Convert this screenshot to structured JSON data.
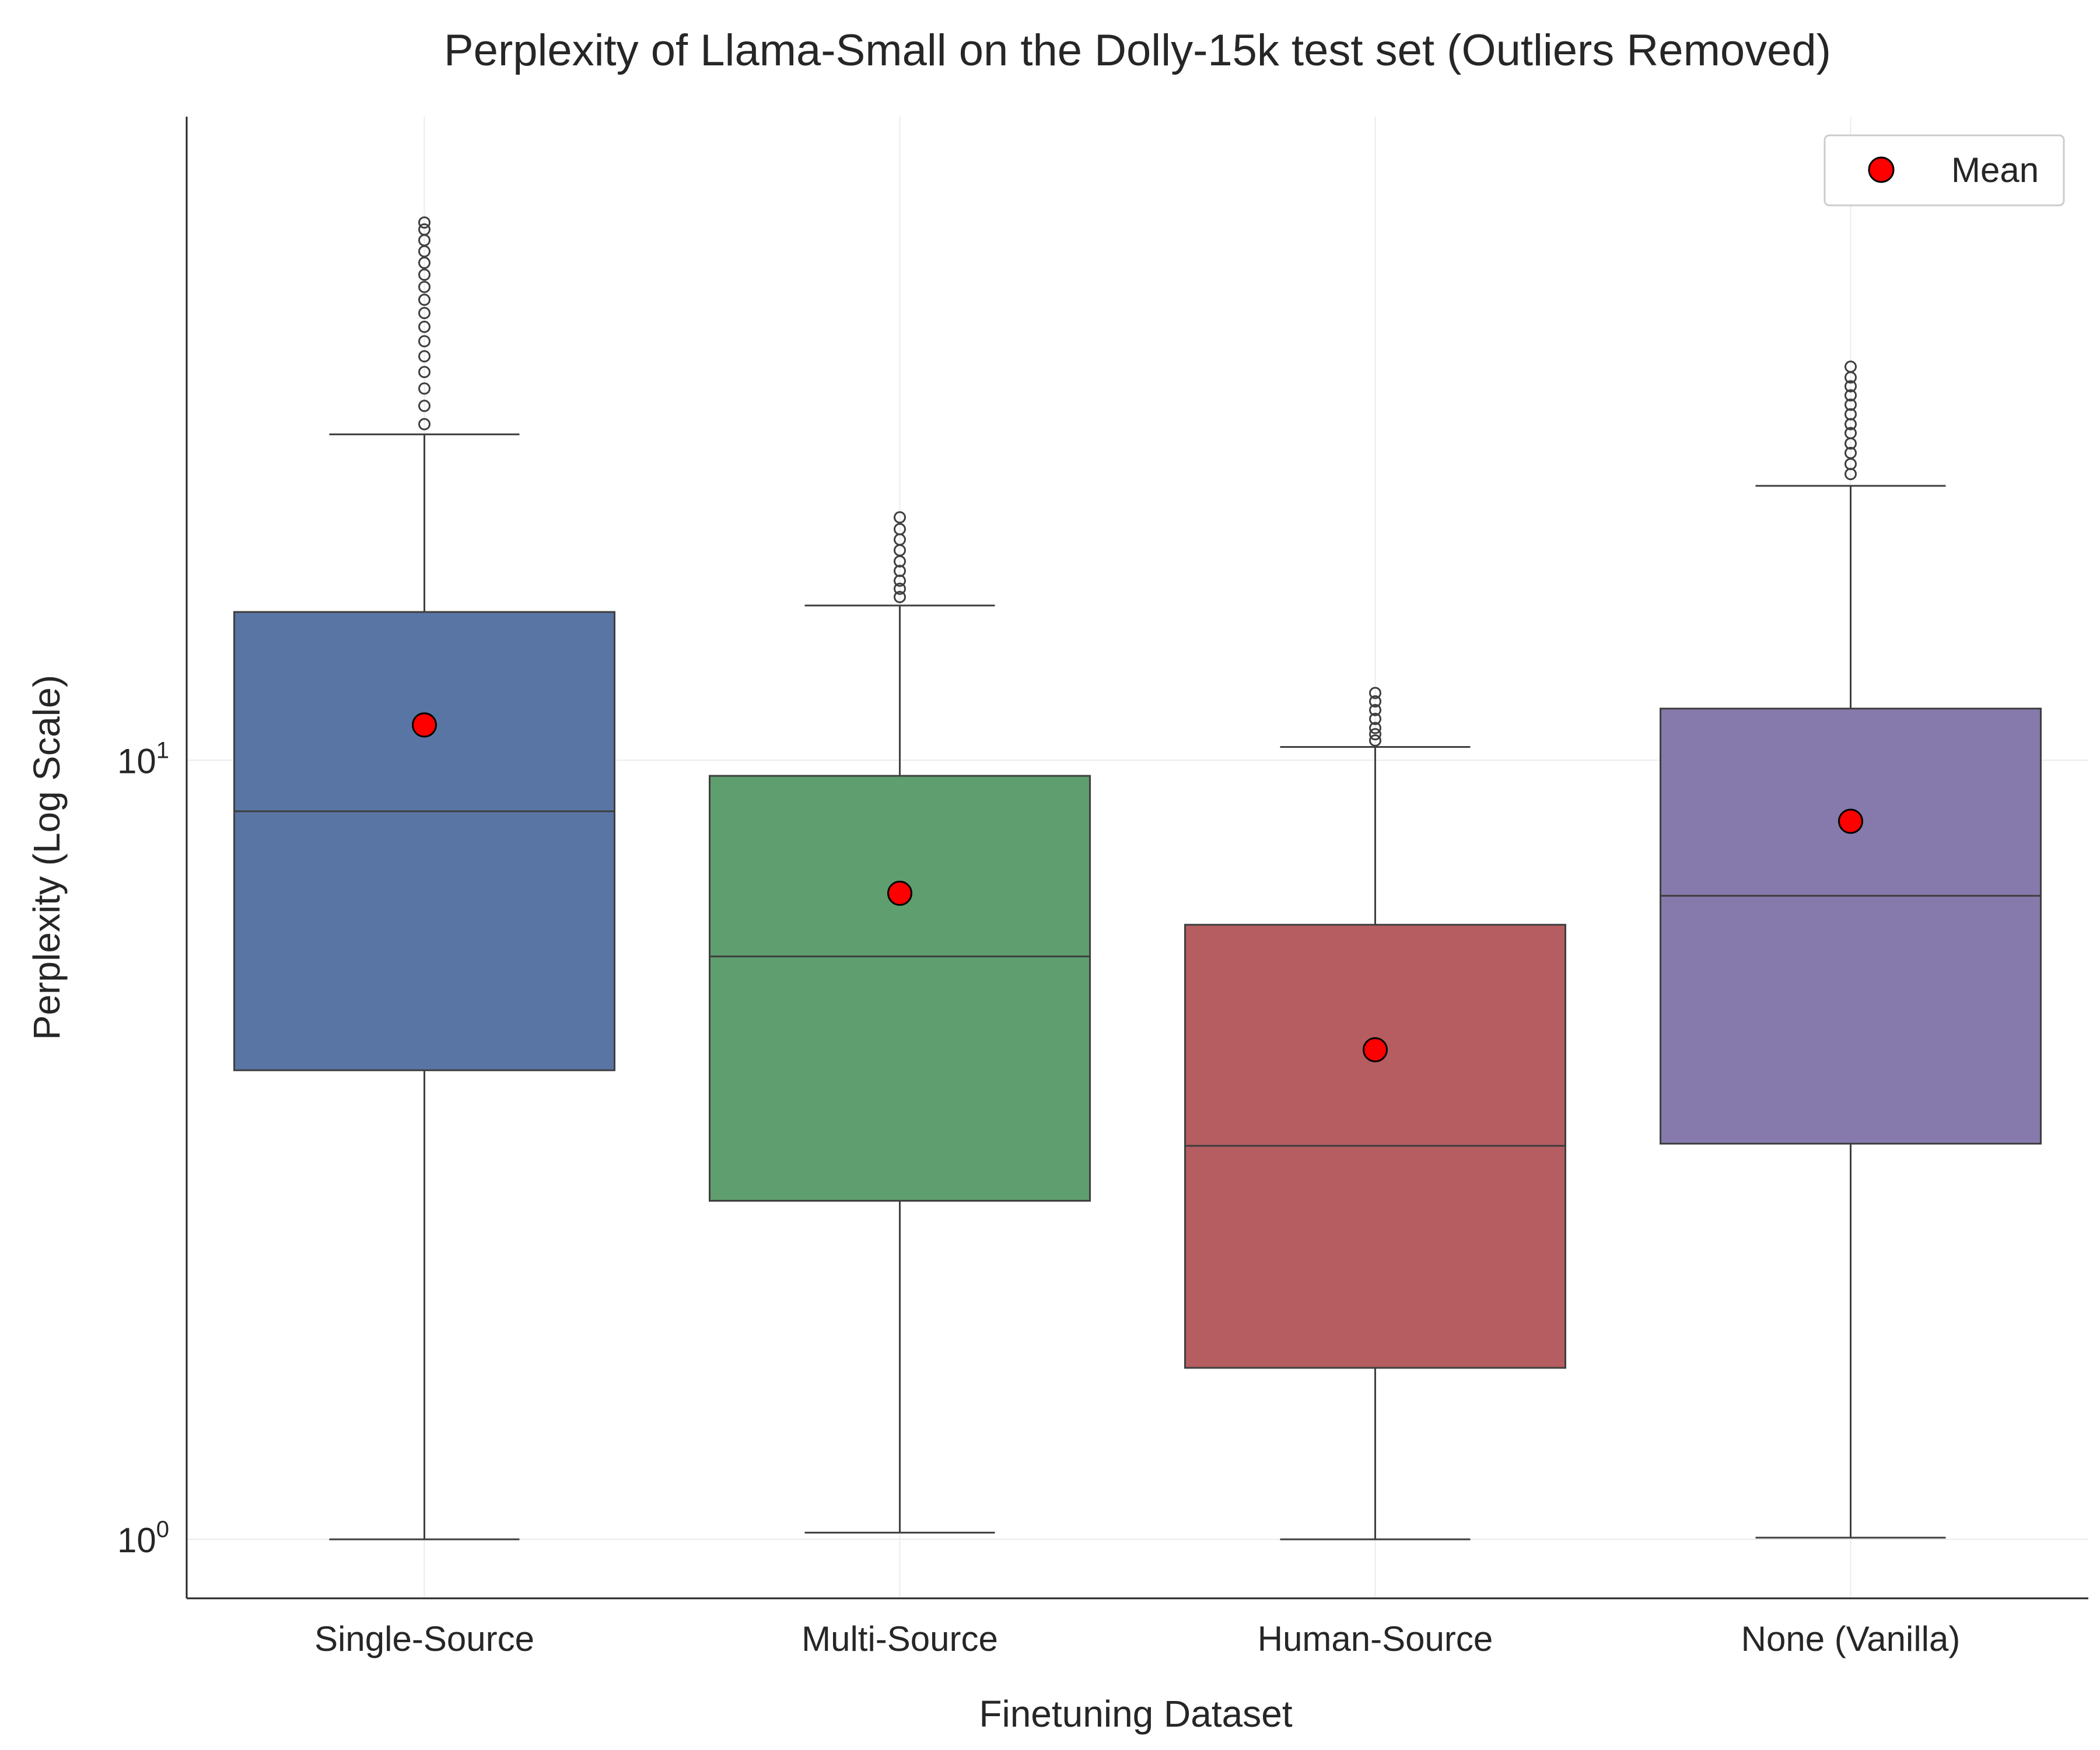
{
  "chart_data": {
    "type": "box",
    "title": "Perplexity of Llama-Small on the Dolly-15k test set (Outliers Removed)",
    "xlabel": "Finetuning Dataset",
    "ylabel": "Perplexity (Log Scale)",
    "yscale": "log",
    "ylim": [
      0.84,
      67
    ],
    "yticks": [
      {
        "value": 1,
        "base": "10",
        "exp": "0"
      },
      {
        "value": 10,
        "base": "10",
        "exp": "1"
      }
    ],
    "grid": true,
    "legend": {
      "position": "top-right",
      "entries": [
        {
          "label": "Mean",
          "marker": "circle",
          "color": "#ff0000"
        }
      ]
    },
    "series": [
      {
        "name": "Single-Source",
        "color": "#5975a4",
        "whisker_low": 1.0,
        "q1": 4.0,
        "median": 8.6,
        "q3": 15.5,
        "whisker_high": 26.2,
        "mean": 11.1,
        "outliers": [
          27.0,
          28.5,
          30.0,
          31.5,
          33.0,
          34.5,
          36.0,
          37.5,
          39.0,
          40.5,
          42.0,
          43.5,
          45.0,
          46.5,
          48.0,
          49.0
        ]
      },
      {
        "name": "Multi-Source",
        "color": "#5f9e6e",
        "whisker_low": 1.02,
        "q1": 2.72,
        "median": 5.6,
        "q3": 9.55,
        "whisker_high": 15.8,
        "mean": 6.75,
        "outliers": [
          16.2,
          16.6,
          17.0,
          17.5,
          18.0,
          18.6,
          19.2,
          19.8,
          20.5
        ]
      },
      {
        "name": "Human-Source",
        "color": "#b55d60",
        "whisker_low": 1.0,
        "q1": 1.66,
        "median": 3.2,
        "q3": 6.15,
        "whisker_high": 10.4,
        "mean": 4.25,
        "outliers": [
          10.6,
          10.8,
          11.0,
          11.3,
          11.6,
          11.9,
          12.2
        ]
      },
      {
        "name": "None (Vanilla)",
        "color": "#857aab",
        "whisker_low": 1.005,
        "q1": 3.22,
        "median": 6.7,
        "q3": 11.65,
        "whisker_high": 22.5,
        "mean": 8.35,
        "outliers": [
          23.3,
          24.0,
          24.8,
          25.5,
          26.3,
          27.0,
          27.8,
          28.6,
          29.4,
          30.2,
          31.0,
          32.0
        ]
      }
    ]
  }
}
